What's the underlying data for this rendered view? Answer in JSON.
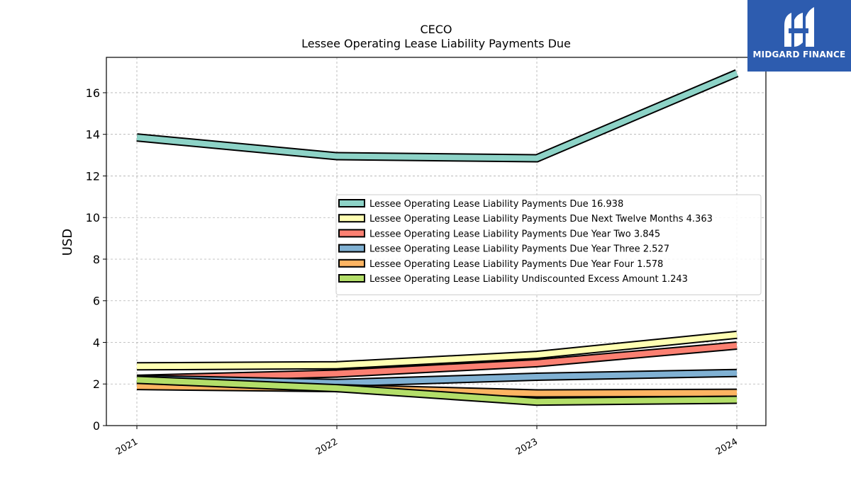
{
  "brand": {
    "name": "MIDGARD FINANCE"
  },
  "chart_data": {
    "type": "line",
    "title": "CECO",
    "subtitle": "Lessee Operating Lease Liability Payments Due",
    "xlabel": "",
    "ylabel": "USD",
    "categories": [
      "2021",
      "2022",
      "2023",
      "2024"
    ],
    "ylim": [
      0,
      17.7
    ],
    "yticks": [
      0,
      2,
      4,
      6,
      8,
      10,
      12,
      14,
      16
    ],
    "grid": true,
    "legend_position": "center-right",
    "series": [
      {
        "name": "Lessee Operating Lease Liability Payments Due",
        "legend_value": "16.938",
        "color": "#8dd3c7",
        "values": [
          13.85,
          12.95,
          12.85,
          16.938
        ]
      },
      {
        "name": "Lessee Operating Lease Liability Payments Due Next Twelve Months",
        "legend_value": "4.363",
        "color": "#ffffb3",
        "values": [
          2.85,
          2.9,
          3.4,
          4.363
        ]
      },
      {
        "name": "Lessee Operating Lease Liability Payments Due Year Two",
        "legend_value": "3.845",
        "color": "#fb8072",
        "values": [
          2.25,
          2.5,
          3.0,
          3.845
        ]
      },
      {
        "name": "Lessee Operating Lease Liability Payments Due Year Three",
        "legend_value": "2.527",
        "color": "#80b1d3",
        "values": [
          2.25,
          2.05,
          2.35,
          2.527
        ]
      },
      {
        "name": "Lessee Operating Lease Liability Payments Due Year Four",
        "legend_value": "1.578",
        "color": "#fdb462",
        "values": [
          1.9,
          1.8,
          1.55,
          1.578
        ]
      },
      {
        "name": "Lessee Operating Lease Liability Undiscounted Excess Amount",
        "legend_value": "1.243",
        "color": "#b3de69",
        "values": [
          2.2,
          1.8,
          1.15,
          1.243
        ]
      }
    ]
  }
}
